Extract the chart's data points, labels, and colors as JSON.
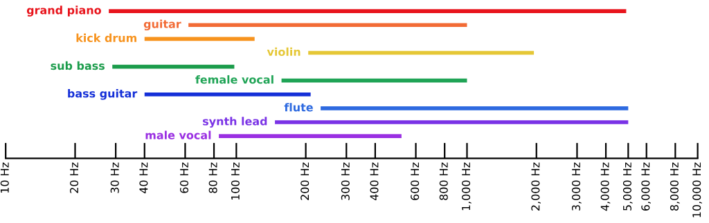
{
  "chart_data": {
    "type": "bar",
    "orientation": "horizontal",
    "log": "x",
    "categories": [
      "grand piano",
      "guitar",
      "kick drum",
      "violin",
      "sub bass",
      "female vocal",
      "bass guitar",
      "flute",
      "synth lead",
      "male vocal"
    ],
    "base": [
      28,
      62,
      40,
      205,
      29,
      157,
      40,
      232,
      147,
      84
    ],
    "values": [
      4872,
      938,
      80,
      1745,
      69,
      843,
      170,
      4768,
      4853,
      436
    ],
    "colors": [
      "#e8141c",
      "#f26b35",
      "#f7931e",
      "#e5c736",
      "#1b9c4b",
      "#20a456",
      "#1530d8",
      "#2e6ae0",
      "#7a33e6",
      "#9a2fe2"
    ],
    "xlim": [
      10,
      10000
    ],
    "xticks": [
      {
        "value": 10,
        "label": "10 Hz"
      },
      {
        "value": 20,
        "label": "20 Hz"
      },
      {
        "value": 30,
        "label": "30 Hz"
      },
      {
        "value": 40,
        "label": "40 Hz"
      },
      {
        "value": 60,
        "label": "60 Hz"
      },
      {
        "value": 80,
        "label": "80 Hz"
      },
      {
        "value": 100,
        "label": "100 Hz"
      },
      {
        "value": 200,
        "label": "200 Hz"
      },
      {
        "value": 300,
        "label": "300 Hz"
      },
      {
        "value": 400,
        "label": "400 Hz"
      },
      {
        "value": 600,
        "label": "600 Hz"
      },
      {
        "value": 800,
        "label": "800 Hz"
      },
      {
        "value": 1000,
        "label": "1,000 Hz"
      },
      {
        "value": 2000,
        "label": "2,000 Hz"
      },
      {
        "value": 3000,
        "label": "3,000 Hz"
      },
      {
        "value": 4000,
        "label": "4,000 Hz"
      },
      {
        "value": 5000,
        "label": "5,000 Hz"
      },
      {
        "value": 6000,
        "label": "6,000 Hz"
      },
      {
        "value": 8000,
        "label": "8,000 Hz"
      },
      {
        "value": 10000,
        "label": "10,000 Hz"
      }
    ],
    "tick_labels": "x",
    "grid": false,
    "legend": false
  }
}
